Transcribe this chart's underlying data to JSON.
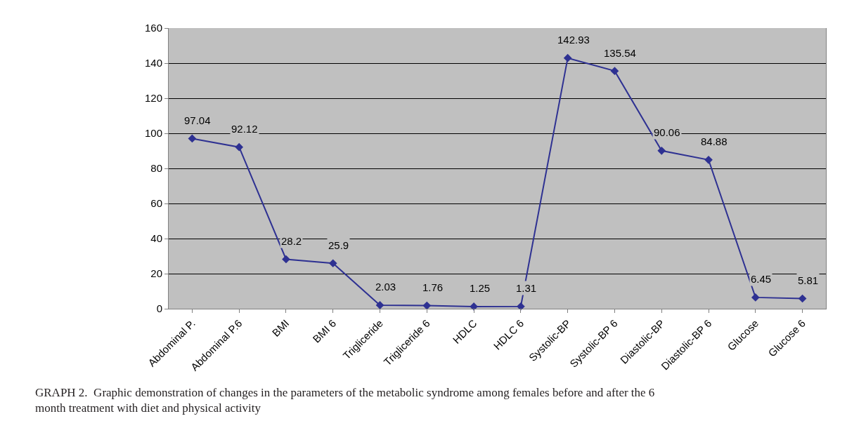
{
  "chart_data": {
    "type": "line",
    "categories": [
      "Abdominal P.",
      "Abdominal P.6",
      "BMI",
      "BMI 6",
      "Trigliceride",
      "Trigliceride 6",
      "HDLC",
      "HDLC 6",
      "Systolic-BP",
      "Systolic-BP 6",
      "Diastolic-BP",
      "Diastolic-BP 6",
      "Glucose",
      "Glucose 6"
    ],
    "values": [
      97.04,
      92.12,
      28.2,
      25.9,
      2.03,
      1.76,
      1.25,
      1.31,
      142.93,
      135.54,
      90.06,
      84.88,
      6.45,
      5.81
    ],
    "color": "#2e3192",
    "ylim": [
      0,
      160
    ],
    "yticks": [
      0,
      20,
      40,
      60,
      80,
      100,
      120,
      140,
      160
    ],
    "grid": "y",
    "marker": "diamond",
    "line_style": "solid",
    "data_labels": true,
    "legend": false,
    "annotations": [
      "GRAPH 2.  Graphic demonstration of changes in the parameters of the metabolic syndrome among females before and after the 6 month treatment with diet and physical activity"
    ]
  }
}
